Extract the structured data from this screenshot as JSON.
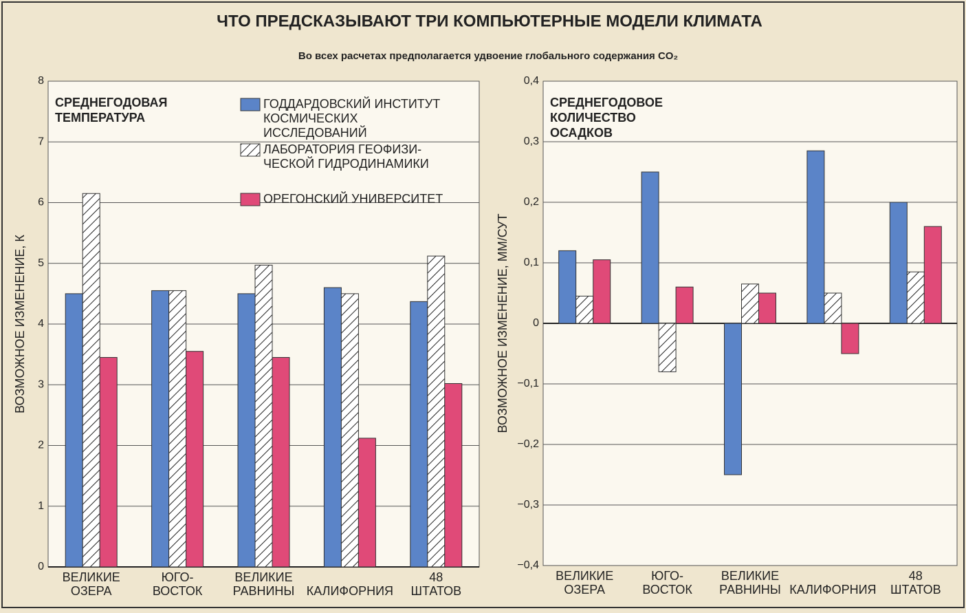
{
  "title": "ЧТО ПРЕДСКАЗЫВАЮТ ТРИ КОМПЬЮТЕРНЫЕ МОДЕЛИ КЛИМАТА",
  "subtitle": "Во всех расчетах предполагается удвоение глобального содержания CO₂",
  "chart_data": [
    {
      "type": "bar",
      "annotation": [
        "СРЕДНЕГОДОВАЯ",
        "ТЕМПЕРАТУРА"
      ],
      "ylabel": "ВОЗМОЖНОЕ ИЗМЕНЕНИЕ, К",
      "categories": [
        [
          "ВЕЛИКИЕ",
          "ОЗЕРА"
        ],
        [
          "ЮГО-",
          "ВОСТОК"
        ],
        [
          "ВЕЛИКИЕ",
          "РАВНИНЫ"
        ],
        [
          "КАЛИФОРНИЯ"
        ],
        [
          "48",
          "ШТАТОВ"
        ]
      ],
      "series": [
        {
          "name": [
            "ГОДДАРДОВСКИЙ ИНСТИТУТ",
            "КОСМИЧЕСКИХ",
            "ИССЛЕДОВАНИЙ"
          ],
          "color": "#5b84c8",
          "values": [
            4.5,
            4.55,
            4.5,
            4.6,
            4.37
          ]
        },
        {
          "name": [
            "ЛАБОРАТОРИЯ ГЕОФИЗИ-",
            "ЧЕСКОЙ ГИДРОДИНАМИКИ"
          ],
          "color": "#ffffff",
          "pattern": "hatch",
          "values": [
            6.15,
            4.55,
            4.97,
            4.5,
            5.12
          ]
        },
        {
          "name": [
            "ОРЕГОНСКИЙ УНИВЕРСИТЕТ"
          ],
          "color": "#e04a78",
          "values": [
            3.45,
            3.55,
            3.45,
            2.12,
            3.02
          ]
        }
      ],
      "ylim": [
        0,
        8
      ],
      "yticks": [
        0,
        1,
        2,
        3,
        4,
        5,
        6,
        7,
        8
      ],
      "grid": true
    },
    {
      "type": "bar",
      "annotation": [
        "СРЕДНЕГОДОВОЕ",
        "КОЛИЧЕСТВО",
        "ОСАДКОВ"
      ],
      "ylabel": "ВОЗМОЖНОЕ ИЗМЕНЕНИЕ, ММ/СУТ",
      "categories": [
        [
          "ВЕЛИКИЕ",
          "ОЗЕРА"
        ],
        [
          "ЮГО-",
          "ВОСТОК"
        ],
        [
          "ВЕЛИКИЕ",
          "РАВНИНЫ"
        ],
        [
          "КАЛИФОРНИЯ"
        ],
        [
          "48",
          "ШТАТОВ"
        ]
      ],
      "series": [
        {
          "color": "#5b84c8",
          "values": [
            0.12,
            0.25,
            -0.25,
            0.285,
            0.2
          ]
        },
        {
          "color": "#ffffff",
          "pattern": "hatch",
          "values": [
            0.045,
            -0.08,
            0.065,
            0.05,
            0.085
          ]
        },
        {
          "color": "#e04a78",
          "values": [
            0.105,
            0.06,
            0.05,
            -0.05,
            0.16
          ]
        }
      ],
      "ylim": [
        -0.4,
        0.4
      ],
      "yticks": [
        {
          "value": -0.4,
          "label": "−0,4"
        },
        {
          "value": -0.3,
          "label": "−0,3"
        },
        {
          "value": -0.2,
          "label": "−0,2"
        },
        {
          "value": -0.1,
          "label": "−0,1"
        },
        0,
        {
          "value": 0.1,
          "label": "0,1"
        },
        {
          "value": 0.2,
          "label": "0,2"
        },
        {
          "value": 0.3,
          "label": "0,3"
        },
        {
          "value": 0.4,
          "label": "0,4"
        }
      ],
      "grid": true
    }
  ]
}
